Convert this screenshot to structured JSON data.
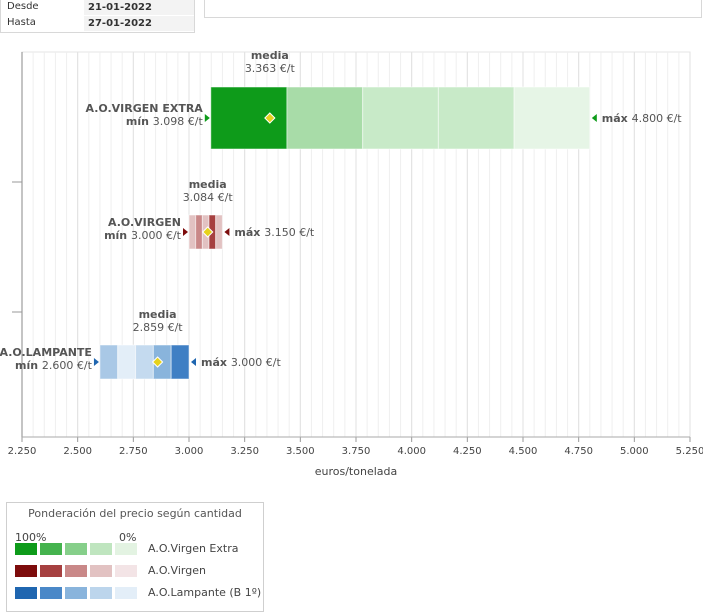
{
  "filters": {
    "desde_label": "Desde",
    "desde_value": "21-01-2022",
    "hasta_label": "Hasta",
    "hasta_value": "27-01-2022"
  },
  "legend": {
    "title": "Ponderación del precio según cantidad",
    "label_100": "100%",
    "label_0": "0%",
    "rows": [
      {
        "label": "A.O.Virgen Extra",
        "colors": [
          "#0e9b1a",
          "#45b34e",
          "#86cf8a",
          "#bfe5bf",
          "#e3f3e2"
        ]
      },
      {
        "label": "A.O.Virgen",
        "colors": [
          "#7d0c0c",
          "#a64040",
          "#c98888",
          "#e2c2c2",
          "#f3e4e6"
        ]
      },
      {
        "label": "A.O.Lampante (B 1º)",
        "colors": [
          "#1f66b0",
          "#4a88c8",
          "#89b4dc",
          "#bcd5ec",
          "#e3eef8"
        ]
      }
    ]
  },
  "chart_data": {
    "type": "range-bar",
    "xlabel": "euros/tonelada",
    "xlim": [
      2250,
      5250
    ],
    "xticks": [
      2250,
      2500,
      2750,
      3000,
      3250,
      3500,
      3750,
      4000,
      4250,
      4500,
      4750,
      5000,
      5250
    ],
    "xtick_labels": [
      "2.250",
      "2.500",
      "2.750",
      "3.000",
      "3.250",
      "3.500",
      "3.750",
      "4.000",
      "4.250",
      "4.500",
      "4.750",
      "5.000",
      "5.250"
    ],
    "series": [
      {
        "name": "A.O.VIRGEN EXTRA",
        "min": 3098,
        "max": 4800,
        "media": 3363,
        "min_label": "mín",
        "min_value": "3.098 €/t",
        "max_label": "máx",
        "max_value": "4.800 €/t",
        "media_label": "media",
        "media_value": "3.363 €/t",
        "segments": [
          {
            "from": 3098,
            "to": 3440,
            "color": "#0e9b1a"
          },
          {
            "from": 3440,
            "to": 3780,
            "color": "#a8dca8"
          },
          {
            "from": 3780,
            "to": 4120,
            "color": "#c8eac8"
          },
          {
            "from": 4120,
            "to": 4460,
            "color": "#c8eac8"
          },
          {
            "from": 4460,
            "to": 4800,
            "color": "#e6f5e6"
          }
        ],
        "marker_color": "#0e9b1a"
      },
      {
        "name": "A.O.VIRGEN",
        "min": 3000,
        "max": 3150,
        "media": 3084,
        "min_label": "mín",
        "min_value": "3.000 €/t",
        "max_label": "máx",
        "max_value": "3.150 €/t",
        "media_label": "media",
        "media_value": "3.084 €/t",
        "segments": [
          {
            "from": 3000,
            "to": 3030,
            "color": "#e2c2c2"
          },
          {
            "from": 3030,
            "to": 3060,
            "color": "#c98888"
          },
          {
            "from": 3060,
            "to": 3090,
            "color": "#e2c2c2"
          },
          {
            "from": 3090,
            "to": 3120,
            "color": "#a64040"
          },
          {
            "from": 3120,
            "to": 3150,
            "color": "#e2c2c2"
          }
        ],
        "marker_color": "#7d0c0c"
      },
      {
        "name": "A.O.LAMPANTE",
        "min": 2600,
        "max": 3000,
        "media": 2859,
        "min_label": "mín",
        "min_value": "2.600 €/t",
        "max_label": "máx",
        "max_value": "3.000 €/t",
        "media_label": "media",
        "media_value": "2.859 €/t",
        "segments": [
          {
            "from": 2600,
            "to": 2680,
            "color": "#a9c8e6"
          },
          {
            "from": 2680,
            "to": 2760,
            "color": "#e3eef8"
          },
          {
            "from": 2760,
            "to": 2840,
            "color": "#c4daef"
          },
          {
            "from": 2840,
            "to": 2920,
            "color": "#89b4dc"
          },
          {
            "from": 2920,
            "to": 3000,
            "color": "#3f7fc4"
          }
        ],
        "marker_color": "#1f66b0"
      }
    ],
    "grid": true
  }
}
